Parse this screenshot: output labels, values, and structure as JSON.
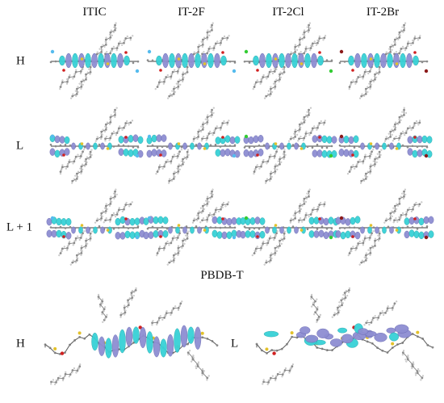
{
  "columns": [
    "ITIC",
    "IT-2F",
    "IT-2Cl",
    "IT-2Br"
  ],
  "rows": [
    "H",
    "L",
    "L + 1"
  ],
  "polymer": {
    "title": "PBDB-T",
    "panels": [
      "H",
      "L"
    ]
  },
  "colors": {
    "lobe_positive": "#37d1d6",
    "lobe_negative": "#8e8ed2",
    "carbon": "#8c8c8c",
    "hydrogen": "#d8d8d8",
    "sulfur": "#e3c12a",
    "oxygen": "#d02020",
    "fluorine": "#55bbee",
    "chlorine": "#33cc33",
    "bromine": "#8b1a1a",
    "nitrogen": "#3050f0"
  }
}
